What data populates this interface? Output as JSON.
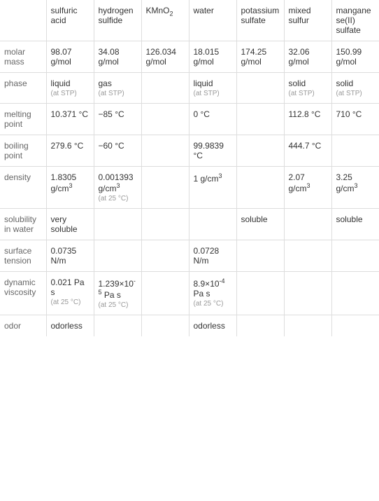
{
  "table": {
    "columns": [
      "",
      "sulfuric acid",
      "hydrogen sulfide",
      "KMnO_2",
      "water",
      "potassium sulfate",
      "mixed sulfur",
      "manganese(II) sulfate"
    ],
    "rows": [
      {
        "label": "molar mass",
        "values": [
          "98.07 g/mol",
          "34.08 g/mol",
          "126.034 g/mol",
          "18.015 g/mol",
          "174.25 g/mol",
          "32.06 g/mol",
          "150.99 g/mol"
        ]
      },
      {
        "label": "phase",
        "values": [
          "liquid",
          "gas",
          "",
          "liquid",
          "",
          "solid",
          "solid"
        ],
        "notes": [
          "(at STP)",
          "(at STP)",
          "",
          "(at STP)",
          "",
          "(at STP)",
          "(at STP)"
        ]
      },
      {
        "label": "melting point",
        "values": [
          "10.371 °C",
          "−85 °C",
          "",
          "0 °C",
          "",
          "112.8 °C",
          "710 °C"
        ]
      },
      {
        "label": "boiling point",
        "values": [
          "279.6 °C",
          "−60 °C",
          "",
          "99.9839 °C",
          "",
          "444.7 °C",
          ""
        ]
      },
      {
        "label": "density",
        "values": [
          "1.8305 g/cm^3",
          "0.001393 g/cm^3",
          "",
          "1 g/cm^3",
          "",
          "2.07 g/cm^3",
          "3.25 g/cm^3"
        ],
        "notes": [
          "",
          "(at 25 °C)",
          "",
          "",
          "",
          "",
          ""
        ]
      },
      {
        "label": "solubility in water",
        "values": [
          "very soluble",
          "",
          "",
          "",
          "soluble",
          "",
          "soluble"
        ]
      },
      {
        "label": "surface tension",
        "values": [
          "0.0735 N/m",
          "",
          "",
          "0.0728 N/m",
          "",
          "",
          ""
        ]
      },
      {
        "label": "dynamic viscosity",
        "values": [
          "0.021 Pa s",
          "1.239×10^-5 Pa s",
          "",
          "8.9×10^-4 Pa s",
          "",
          "",
          ""
        ],
        "notes": [
          "(at 25 °C)",
          "(at 25 °C)",
          "",
          "(at 25 °C)",
          "",
          "",
          ""
        ]
      },
      {
        "label": "odor",
        "values": [
          "odorless",
          "",
          "",
          "odorless",
          "",
          "",
          ""
        ]
      }
    ],
    "styling": {
      "border_color": "#dddddd",
      "text_color": "#333333",
      "label_color": "#666666",
      "note_color": "#999999",
      "font_size": 12,
      "note_font_size": 10,
      "cell_padding": "8px 6px",
      "background_color": "#ffffff",
      "first_col_width": 66,
      "data_col_width": 68
    }
  }
}
